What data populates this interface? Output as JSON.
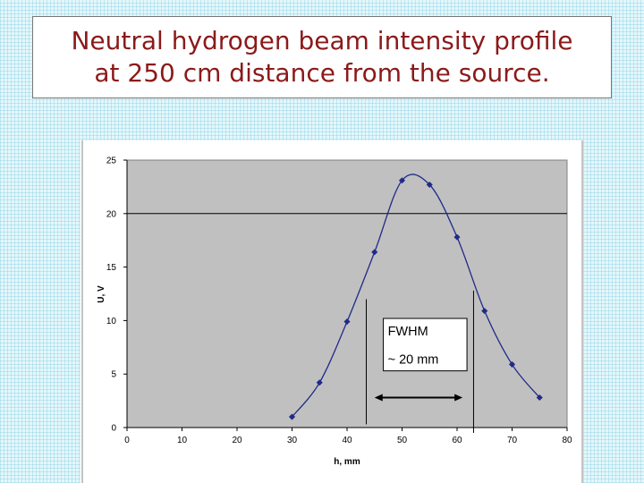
{
  "slide": {
    "title_line1": "Neutral hydrogen beam intensity profile",
    "title_line2": "at 250 cm distance from the source."
  },
  "colors": {
    "title_text": "#8b1a1a",
    "series": "#1f2a8a",
    "plot_area": "#c0c0c0"
  },
  "chart_data": {
    "type": "scatter",
    "title": "",
    "xlabel": "h, mm",
    "ylabel": "U, V",
    "xlim": [
      0,
      80
    ],
    "ylim": [
      0,
      25
    ],
    "x_ticks": [
      0,
      10,
      20,
      30,
      40,
      50,
      60,
      70,
      80
    ],
    "y_ticks": [
      0,
      5,
      10,
      15,
      20,
      25
    ],
    "grid": "horizontal major gridline at 20",
    "series": [
      {
        "x": [
          30,
          35,
          40,
          45,
          50,
          55,
          60,
          65,
          70,
          75
        ],
        "y": [
          1.0,
          4.2,
          9.9,
          16.4,
          23.1,
          22.7,
          17.8,
          10.9,
          5.9,
          2.8
        ],
        "smoothed_line": true
      }
    ],
    "annotations": {
      "fwhm_label": "FWHM",
      "fwhm_value": "~ 20 mm",
      "fwhm_left_x": 43.5,
      "fwhm_right_x": 63,
      "fwhm_arrow_from_x": 45,
      "fwhm_arrow_to_x": 61,
      "fwhm_arrow_y": 2.8
    }
  }
}
